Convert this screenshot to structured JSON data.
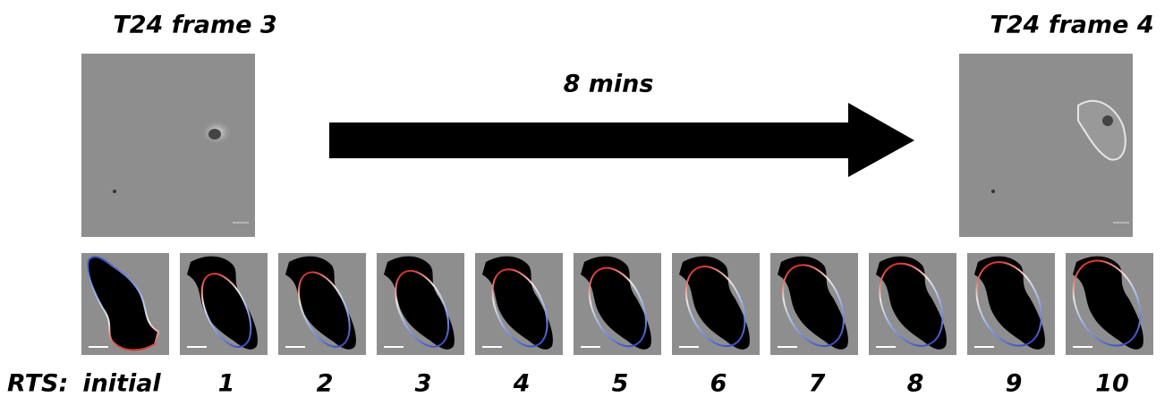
{
  "titles": {
    "left": "T24 frame 3",
    "right": "T24 frame 4"
  },
  "arrow_label": "8 mins",
  "rts_label": "RTS:",
  "panels": [
    "initial",
    "1",
    "2",
    "3",
    "4",
    "5",
    "6",
    "7",
    "8",
    "9",
    "10"
  ]
}
